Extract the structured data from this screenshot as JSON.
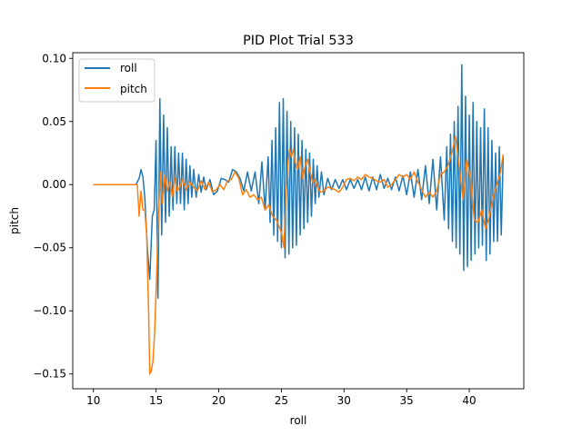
{
  "chart_data": {
    "type": "line",
    "title": "PID Plot Trial 533",
    "xlabel": "roll",
    "ylabel": "pitch",
    "xlim": [
      8.35,
      44.35
    ],
    "ylim": [
      -0.1617,
      0.1045
    ],
    "xticks": [
      10,
      15,
      20,
      25,
      30,
      35,
      40
    ],
    "xtick_labels": [
      "10",
      "15",
      "20",
      "25",
      "30",
      "35",
      "40"
    ],
    "yticks": [
      -0.15,
      -0.1,
      -0.05,
      0.0,
      0.05,
      0.1
    ],
    "ytick_labels": [
      "−0.15",
      "−0.10",
      "−0.05",
      "0.00",
      "0.05",
      "0.10"
    ],
    "grid": false,
    "legend_position": "top-left",
    "series": [
      {
        "name": "roll",
        "color": "#1f77b4",
        "x": [
          10.0,
          11.0,
          12.0,
          13.0,
          13.4,
          13.65,
          13.8,
          13.95,
          14.1,
          14.3,
          14.5,
          14.7,
          14.85,
          15.0,
          15.15,
          15.3,
          15.45,
          15.6,
          15.75,
          15.9,
          16.05,
          16.2,
          16.35,
          16.5,
          16.65,
          16.8,
          16.95,
          17.1,
          17.25,
          17.4,
          17.55,
          17.7,
          17.85,
          18.0,
          18.2,
          18.4,
          18.6,
          18.8,
          19.0,
          19.3,
          19.6,
          19.9,
          20.2,
          20.5,
          20.8,
          21.1,
          21.4,
          21.7,
          22.0,
          22.3,
          22.6,
          22.9,
          23.2,
          23.45,
          23.7,
          23.95,
          24.1,
          24.25,
          24.4,
          24.55,
          24.7,
          24.85,
          25.0,
          25.15,
          25.3,
          25.45,
          25.6,
          25.75,
          25.9,
          26.05,
          26.2,
          26.35,
          26.5,
          26.65,
          26.8,
          26.95,
          27.1,
          27.25,
          27.4,
          27.55,
          27.7,
          27.85,
          28.0,
          28.2,
          28.4,
          28.7,
          29.0,
          29.3,
          29.6,
          29.9,
          30.2,
          30.5,
          30.8,
          31.1,
          31.4,
          31.7,
          32.0,
          32.3,
          32.6,
          32.9,
          33.2,
          33.5,
          33.8,
          34.1,
          34.4,
          34.7,
          35.0,
          35.3,
          35.6,
          35.9,
          36.2,
          36.5,
          36.8,
          37.1,
          37.4,
          37.7,
          38.0,
          38.2,
          38.35,
          38.5,
          38.65,
          38.8,
          38.95,
          39.1,
          39.25,
          39.4,
          39.55,
          39.7,
          39.85,
          40.0,
          40.15,
          40.3,
          40.45,
          40.6,
          40.75,
          40.9,
          41.05,
          41.2,
          41.35,
          41.5,
          41.65,
          41.8,
          41.95,
          42.1,
          42.25,
          42.4,
          42.55,
          42.7
        ],
        "y": [
          0.0,
          0.0,
          0.0,
          0.0,
          0.0,
          0.005,
          0.012,
          0.006,
          -0.01,
          -0.05,
          -0.075,
          -0.025,
          -0.02,
          0.035,
          -0.09,
          0.068,
          -0.04,
          0.055,
          -0.03,
          0.045,
          -0.025,
          0.03,
          -0.02,
          0.03,
          -0.015,
          0.025,
          -0.015,
          0.025,
          -0.02,
          0.02,
          -0.015,
          0.015,
          -0.01,
          0.012,
          -0.01,
          0.008,
          -0.006,
          0.006,
          -0.004,
          0.004,
          -0.008,
          -0.005,
          0.005,
          0.004,
          0.002,
          0.012,
          0.01,
          0.005,
          -0.005,
          0.01,
          -0.005,
          0.01,
          -0.015,
          0.018,
          -0.02,
          0.022,
          -0.03,
          0.035,
          -0.04,
          0.045,
          -0.045,
          0.065,
          -0.05,
          0.068,
          -0.058,
          0.058,
          -0.055,
          0.05,
          -0.05,
          0.045,
          -0.048,
          0.04,
          -0.04,
          0.035,
          -0.035,
          0.028,
          -0.03,
          0.025,
          -0.025,
          0.02,
          -0.015,
          0.015,
          -0.01,
          0.01,
          -0.008,
          0.005,
          -0.004,
          0.004,
          -0.003,
          0.004,
          -0.004,
          0.004,
          -0.003,
          0.004,
          -0.004,
          0.006,
          -0.005,
          0.006,
          -0.004,
          0.008,
          -0.003,
          0.005,
          -0.004,
          0.006,
          -0.005,
          0.007,
          -0.008,
          0.01,
          -0.01,
          0.012,
          -0.012,
          0.015,
          -0.015,
          0.02,
          -0.02,
          0.022,
          -0.028,
          0.03,
          -0.035,
          0.04,
          -0.045,
          0.05,
          -0.05,
          0.062,
          -0.055,
          0.095,
          -0.068,
          0.07,
          -0.065,
          0.055,
          -0.06,
          0.065,
          -0.055,
          0.05,
          -0.05,
          0.045,
          -0.048,
          0.06,
          -0.06,
          0.045,
          -0.055,
          0.035,
          -0.045,
          0.025,
          -0.045,
          0.03,
          -0.04,
          0.022
        ]
      },
      {
        "name": "pitch",
        "color": "#ff7f0e",
        "x": [
          10.0,
          11.0,
          12.0,
          13.0,
          13.5,
          13.65,
          13.8,
          13.95,
          14.1,
          14.25,
          14.4,
          14.5,
          14.6,
          14.75,
          14.9,
          15.05,
          15.2,
          15.35,
          15.5,
          15.7,
          15.9,
          16.1,
          16.3,
          16.5,
          16.7,
          16.9,
          17.1,
          17.4,
          17.7,
          18.0,
          18.3,
          18.6,
          18.9,
          19.2,
          19.5,
          19.8,
          20.1,
          20.4,
          20.7,
          21.0,
          21.3,
          21.6,
          21.9,
          22.2,
          22.5,
          22.8,
          23.1,
          23.4,
          23.7,
          24.0,
          24.3,
          24.6,
          24.9,
          25.05,
          25.2,
          25.35,
          25.5,
          25.65,
          25.8,
          25.95,
          26.1,
          26.3,
          26.5,
          26.7,
          26.9,
          27.1,
          27.3,
          27.5,
          27.7,
          27.9,
          28.1,
          28.4,
          28.7,
          29.0,
          29.3,
          29.6,
          29.9,
          30.2,
          30.5,
          30.8,
          31.1,
          31.4,
          31.7,
          32.0,
          32.3,
          32.6,
          32.9,
          33.2,
          33.5,
          33.8,
          34.1,
          34.4,
          34.7,
          35.0,
          35.3,
          35.6,
          35.9,
          36.2,
          36.5,
          36.8,
          37.1,
          37.4,
          37.7,
          38.0,
          38.3,
          38.6,
          38.9,
          39.2,
          39.5,
          39.8,
          40.1,
          40.4,
          40.7,
          41.0,
          41.3,
          41.6,
          41.9,
          42.2,
          42.5,
          42.7
        ],
        "y": [
          0.0,
          0.0,
          0.0,
          0.0,
          0.0,
          -0.025,
          -0.005,
          -0.02,
          -0.02,
          -0.04,
          -0.1,
          -0.15,
          -0.148,
          -0.14,
          -0.115,
          -0.07,
          -0.02,
          0.01,
          -0.015,
          0.008,
          -0.005,
          0.002,
          -0.01,
          0.005,
          -0.005,
          -0.002,
          0.004,
          -0.004,
          0.002,
          -0.002,
          -0.005,
          0.003,
          -0.004,
          0.002,
          -0.006,
          -0.004,
          0.0,
          -0.004,
          0.003,
          0.004,
          0.01,
          0.005,
          -0.008,
          -0.004,
          -0.01,
          -0.008,
          -0.012,
          -0.01,
          -0.02,
          -0.016,
          -0.025,
          -0.028,
          -0.035,
          -0.04,
          -0.05,
          -0.012,
          0.015,
          0.028,
          0.022,
          0.028,
          0.018,
          0.012,
          0.022,
          0.005,
          0.015,
          0.02,
          0.01,
          0.002,
          0.004,
          -0.002,
          -0.006,
          -0.005,
          -0.002,
          -0.003,
          -0.004,
          -0.006,
          -0.002,
          0.004,
          0.005,
          0.003,
          0.006,
          0.004,
          0.008,
          0.006,
          0.005,
          0.003,
          0.002,
          0.004,
          -0.002,
          0.0,
          0.004,
          0.008,
          0.006,
          0.008,
          0.004,
          0.01,
          0.002,
          -0.004,
          -0.01,
          -0.006,
          -0.01,
          -0.005,
          0.008,
          0.01,
          0.015,
          0.025,
          0.038,
          0.015,
          -0.012,
          0.02,
          0.005,
          -0.028,
          -0.03,
          -0.02,
          -0.035,
          -0.025,
          -0.01,
          0.0,
          0.01,
          0.024
        ]
      }
    ]
  }
}
